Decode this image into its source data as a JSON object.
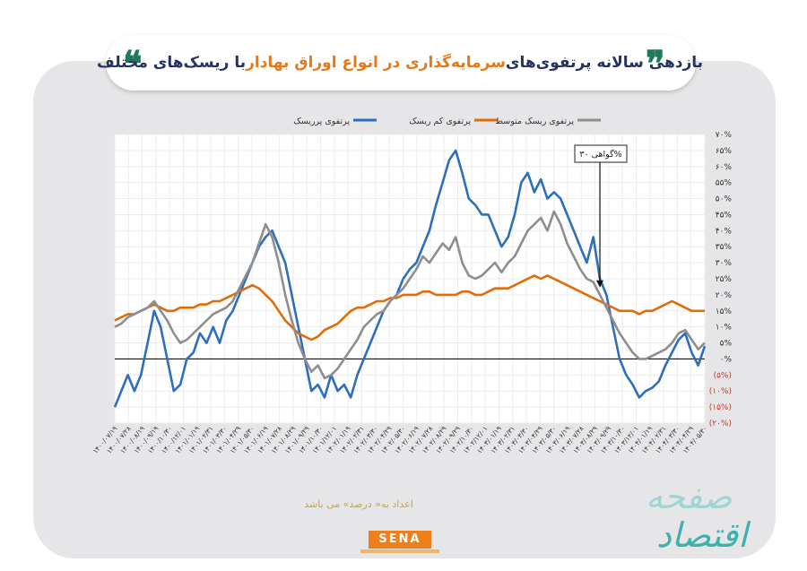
{
  "header": {
    "title_prefix": "بازدهی سالانه پرتفوی‌های ",
    "title_accent": "سرمایه‌گذاری در انواع اوراق بهادار",
    "title_suffix": " با ریسک‌های مختلف"
  },
  "chart_data": {
    "type": "line",
    "title": "بازدهی سالانه پرتفوی‌های سرمایه‌گذاری در انواع اوراق بهادار با ریسک‌های مختلف",
    "xlabel": "",
    "ylabel": "",
    "ylim": [
      -20,
      70
    ],
    "y_ticks": [
      -20,
      -15,
      -10,
      -5,
      0,
      5,
      10,
      15,
      20,
      25,
      30,
      35,
      40,
      45,
      50,
      55,
      60,
      65,
      70
    ],
    "y_tick_labels": [
      "(۲۰%)",
      "(۱۵%)",
      "(۱۰%)",
      "(۵%)",
      "۰%",
      "۵%",
      "۱۰%",
      "۱۵%",
      "۲۰%",
      "۲۵%",
      "۳۰%",
      "۳۵%",
      "۴۰%",
      "۴۵%",
      "۵۰%",
      "۵۵%",
      "۶۰%",
      "۶۵%",
      "۷۰%"
    ],
    "x_tick_labels": [
      "۱۴۰۰/۰۷/۱۹",
      "۱۴۰۰/۰۷/۲۸",
      "۱۴۰۰/۰۸/۱۹",
      "۱۴۰۰/۰۹/۱۹",
      "۱۴۰۰/۱۰/۳۰",
      "۱۴۰۰/۱۲/۰۱",
      "۱۴۰۱/۰۱/۱۹",
      "۱۴۰۱/۰۲/۳۱",
      "۱۴۰۱/۰۳/۳۰",
      "۱۴۰۱/۰۴/۲۹",
      "۱۴۰۱/۰۵/۳۰",
      "۱۴۰۱/۰۶/۱۹",
      "۱۴۰۱/۰۷/۲۸",
      "۱۴۰۱/۰۸/۲۹",
      "۱۴۰۱/۰۹/۲۹",
      "۱۴۰۱/۱۰/۳۰",
      "۱۴۰۱/۱۲/۰۱",
      "۱۴۰۲/۰۱/۱۹",
      "۱۴۰۲/۰۲/۳۱",
      "۱۴۰۲/۰۳/۳۰",
      "۱۴۰۲/۰۴/۲۹",
      "۱۴۰۲/۰۵/۳۰",
      "۱۴۰۲/۰۶/۱۹",
      "۱۴۰۲/۰۷/۲۸",
      "۱۴۰۲/۰۸/۲۹",
      "۱۴۰۲/۰۹/۲۹",
      "۱۴۰۲/۱۰/۳۰",
      "۱۴۰۲/۱۲/۰۱",
      "۱۴۰۳/۰۱/۱۹",
      "۱۴۰۳/۰۲/۳۱",
      "۱۴۰۳/۰۳/۳۰",
      "۱۴۰۳/۰۴/۲۹",
      "۱۴۰۳/۰۵/۳۰",
      "۱۴۰۳/۰۶/۱۹",
      "۱۴۰۳/۰۷/۲۸",
      "۱۴۰۳/۰۸/۲۹",
      "۱۴۰۳/۰۹/۲۹",
      "۱۴۰۳/۱۰/۳۰",
      "۱۴۰۳/۱۲/۰۱",
      "۱۴۰۴/۰۱/۱۹",
      "۱۴۰۴/۰۲/۳۱",
      "۱۴۰۴/۰۳/۳۰",
      "۱۴۰۴/۰۴/۲۹",
      "۱۴۰۴/۰۵/۳۰"
    ],
    "x": [
      0,
      2,
      4,
      6,
      8,
      10,
      12,
      14,
      16,
      18,
      20,
      22,
      24,
      26,
      28,
      30,
      32,
      34,
      36,
      38,
      40,
      42,
      44,
      46,
      48,
      50,
      52,
      54,
      56,
      58,
      60,
      62,
      64,
      66,
      68,
      70,
      72,
      74,
      76,
      78,
      80,
      82,
      84,
      86,
      88,
      90,
      92,
      94,
      96,
      98,
      100,
      102,
      104,
      106,
      108,
      110,
      112,
      114,
      116,
      118,
      120,
      122,
      124,
      126,
      128,
      130,
      132,
      134,
      136,
      138,
      140,
      142,
      144,
      146,
      148,
      150,
      152,
      154,
      156,
      158,
      160,
      162,
      164,
      166,
      168,
      170,
      172,
      174,
      176,
      178,
      180
    ],
    "series": [
      {
        "name": "پرتفوی پرریسک",
        "color": "#2e6fbd",
        "values": [
          -15,
          -10,
          -5,
          -10,
          -5,
          5,
          15,
          10,
          0,
          -10,
          -8,
          0,
          2,
          8,
          5,
          10,
          5,
          12,
          15,
          20,
          25,
          30,
          35,
          38,
          40,
          35,
          30,
          20,
          10,
          0,
          -10,
          -8,
          -12,
          -5,
          -10,
          -8,
          -12,
          -5,
          0,
          5,
          10,
          15,
          18,
          20,
          25,
          28,
          30,
          35,
          40,
          48,
          55,
          62,
          65,
          58,
          50,
          48,
          45,
          45,
          40,
          35,
          38,
          45,
          55,
          58,
          52,
          56,
          50,
          52,
          50,
          45,
          40,
          35,
          30,
          38,
          25,
          20,
          10,
          0,
          -5,
          -8,
          -12,
          -10,
          -9,
          -7,
          -2,
          2,
          6,
          8,
          2,
          -2,
          4
        ]
      },
      {
        "name": "پرتفوی کم ریسک",
        "color": "#e36c0a",
        "values": [
          12,
          13,
          14,
          14,
          15,
          16,
          17,
          16,
          15,
          15,
          16,
          16,
          16,
          17,
          17,
          18,
          18,
          19,
          20,
          21,
          22,
          23,
          22,
          20,
          18,
          15,
          12,
          10,
          8,
          7,
          6,
          7,
          9,
          10,
          11,
          13,
          15,
          16,
          16,
          17,
          18,
          18,
          19,
          19,
          20,
          20,
          20,
          21,
          21,
          20,
          20,
          20,
          20,
          21,
          21,
          20,
          20,
          21,
          22,
          22,
          22,
          23,
          24,
          25,
          26,
          25,
          26,
          25,
          24,
          23,
          22,
          21,
          20,
          19,
          18,
          17,
          16,
          15,
          15,
          15,
          14,
          15,
          15,
          16,
          17,
          18,
          17,
          16,
          15,
          15,
          15
        ]
      },
      {
        "name": "پرتفوی ریسک متوسط",
        "color": "#8e8e8e",
        "values": [
          10,
          11,
          13,
          14,
          15,
          16,
          18,
          15,
          12,
          8,
          5,
          6,
          8,
          10,
          12,
          14,
          15,
          16,
          18,
          22,
          26,
          30,
          36,
          42,
          38,
          30,
          20,
          12,
          5,
          0,
          -4,
          -2,
          -6,
          -5,
          -3,
          0,
          3,
          6,
          10,
          12,
          14,
          15,
          18,
          20,
          22,
          25,
          28,
          32,
          30,
          33,
          36,
          34,
          38,
          30,
          26,
          25,
          26,
          28,
          30,
          27,
          30,
          32,
          36,
          40,
          42,
          44,
          40,
          46,
          42,
          36,
          32,
          28,
          25,
          24,
          20,
          16,
          12,
          8,
          5,
          2,
          0,
          0,
          1,
          2,
          3,
          5,
          8,
          9,
          6,
          3,
          5
        ]
      }
    ],
    "annotation": {
      "text": "گواهی ۳۰%",
      "x": 148,
      "y": 22
    },
    "legend_position": "top"
  },
  "footer": {
    "note": "اعداد به« درصد» می باشد",
    "brand": "SENA"
  }
}
